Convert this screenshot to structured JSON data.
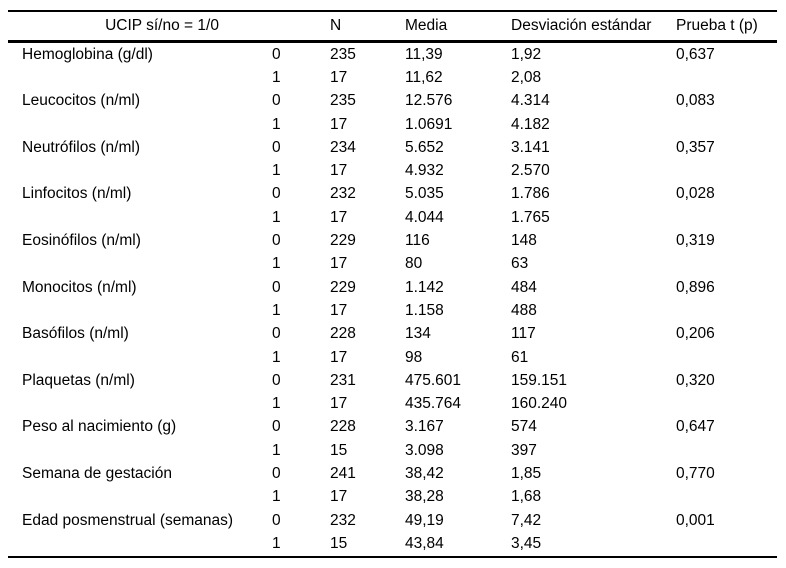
{
  "table": {
    "header": {
      "col_label": "UCIP sí/no = 1/0",
      "col_n": "N",
      "col_media": "Media",
      "col_sd": "Desviación estándar",
      "col_t": "Prueba t (p)"
    },
    "rows": [
      {
        "label": "Hemoglobina (g/dl)",
        "groups": [
          {
            "group": "0",
            "n": "235",
            "media": "11,39",
            "sd": "1,92",
            "p": "0,637"
          },
          {
            "group": "1",
            "n": "17",
            "media": "11,62",
            "sd": "2,08",
            "p": ""
          }
        ]
      },
      {
        "label": "Leucocitos (n/ml)",
        "groups": [
          {
            "group": "0",
            "n": "235",
            "media": "12.576",
            "sd": "4.314",
            "p": "0,083"
          },
          {
            "group": "1",
            "n": "17",
            "media": "1.0691",
            "sd": "4.182",
            "p": ""
          }
        ]
      },
      {
        "label": "Neutrófilos (n/ml)",
        "groups": [
          {
            "group": "0",
            "n": "234",
            "media": "5.652",
            "sd": "3.141",
            "p": "0,357"
          },
          {
            "group": "1",
            "n": "17",
            "media": "4.932",
            "sd": "2.570",
            "p": ""
          }
        ]
      },
      {
        "label": "Linfocitos (n/ml)",
        "groups": [
          {
            "group": "0",
            "n": "232",
            "media": "5.035",
            "sd": "1.786",
            "p": "0,028"
          },
          {
            "group": "1",
            "n": "17",
            "media": "4.044",
            "sd": "1.765",
            "p": ""
          }
        ]
      },
      {
        "label": "Eosinófilos (n/ml)",
        "groups": [
          {
            "group": "0",
            "n": "229",
            "media": "116",
            "sd": "148",
            "p": "0,319"
          },
          {
            "group": "1",
            "n": "17",
            "media": "80",
            "sd": "63",
            "p": ""
          }
        ]
      },
      {
        "label": "Monocitos (n/ml)",
        "groups": [
          {
            "group": "0",
            "n": "229",
            "media": "1.142",
            "sd": "484",
            "p": "0,896"
          },
          {
            "group": "1",
            "n": "17",
            "media": "1.158",
            "sd": "488",
            "p": ""
          }
        ]
      },
      {
        "label": "Basófilos (n/ml)",
        "groups": [
          {
            "group": "0",
            "n": "228",
            "media": "134",
            "sd": "117",
            "p": "0,206"
          },
          {
            "group": "1",
            "n": "17",
            "media": "98",
            "sd": "61",
            "p": ""
          }
        ]
      },
      {
        "label": "Plaquetas (n/ml)",
        "groups": [
          {
            "group": "0",
            "n": "231",
            "media": "475.601",
            "sd": "159.151",
            "p": "0,320"
          },
          {
            "group": "1",
            "n": "17",
            "media": "435.764",
            "sd": "160.240",
            "p": ""
          }
        ]
      },
      {
        "label": "Peso al nacimiento (g)",
        "groups": [
          {
            "group": "0",
            "n": "228",
            "media": "3.167",
            "sd": "574",
            "p": "0,647"
          },
          {
            "group": "1",
            "n": "15",
            "media": "3.098",
            "sd": "397",
            "p": ""
          }
        ]
      },
      {
        "label": "Semana de gestación",
        "groups": [
          {
            "group": "0",
            "n": "241",
            "media": "38,42",
            "sd": "1,85",
            "p": "0,770"
          },
          {
            "group": "1",
            "n": "17",
            "media": "38,28",
            "sd": "1,68",
            "p": ""
          }
        ]
      },
      {
        "label": "Edad posmenstrual (semanas)",
        "groups": [
          {
            "group": "0",
            "n": "232",
            "media": "49,19",
            "sd": "7,42",
            "p": "0,001"
          },
          {
            "group": "1",
            "n": "15",
            "media": "43,84",
            "sd": "3,45",
            "p": ""
          }
        ]
      }
    ]
  }
}
